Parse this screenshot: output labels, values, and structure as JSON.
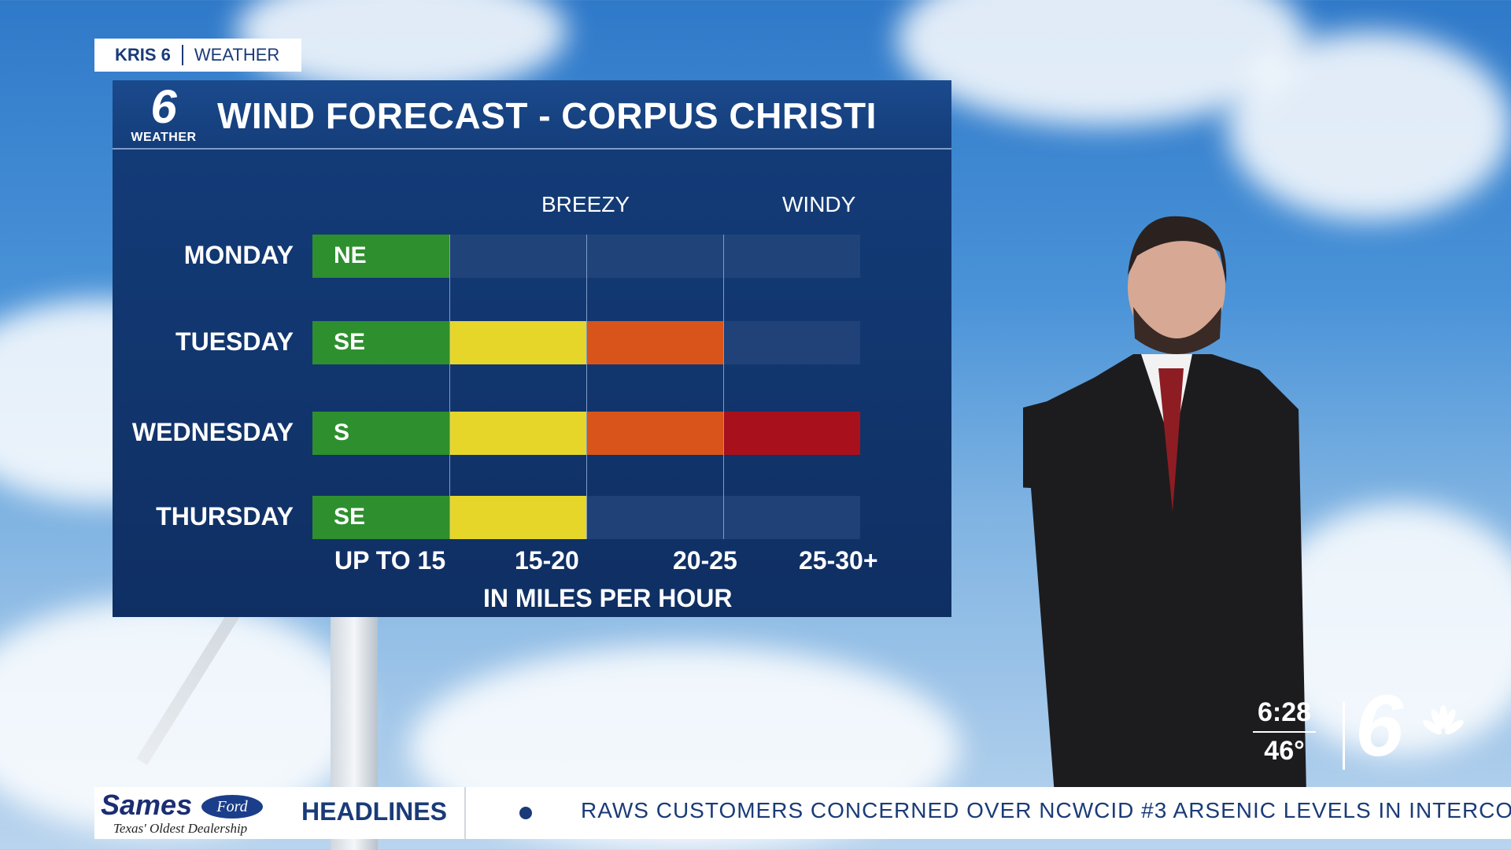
{
  "station": {
    "brand": "KRIS 6",
    "section": "WEATHER"
  },
  "panel": {
    "logo_number": "6",
    "logo_label": "WEATHER",
    "title": "WIND FORECAST - CORPUS CHRISTI",
    "column_headers": [
      "BREEZY",
      "WINDY"
    ],
    "days": [
      {
        "name": "MONDAY",
        "direction": "NE",
        "level": 1
      },
      {
        "name": "TUESDAY",
        "direction": "SE",
        "level": 3
      },
      {
        "name": "WEDNESDAY",
        "direction": "S",
        "level": 4
      },
      {
        "name": "THURSDAY",
        "direction": "SE",
        "level": 2
      }
    ],
    "speed_ranges": [
      "UP TO 15",
      "15-20",
      "20-25",
      "25-30+"
    ],
    "units": "IN MILES PER HOUR",
    "colors": {
      "green": "#2e8f2e",
      "yellow": "#e6d62a",
      "orange": "#d9541a",
      "red": "#a8111c",
      "empty": "#26477c"
    }
  },
  "ticker": {
    "sponsor": "Sames",
    "sponsor_badge": "Ford",
    "sponsor_tagline": "Texas' Oldest Dealership",
    "label": "HEADLINES",
    "headline": "RAWS CUSTOMERS CONCERNED OVER NCWCID #3 ARSENIC LEVELS IN INTERCO"
  },
  "bug": {
    "time": "6:28",
    "temperature": "46°",
    "channel": "6"
  }
}
